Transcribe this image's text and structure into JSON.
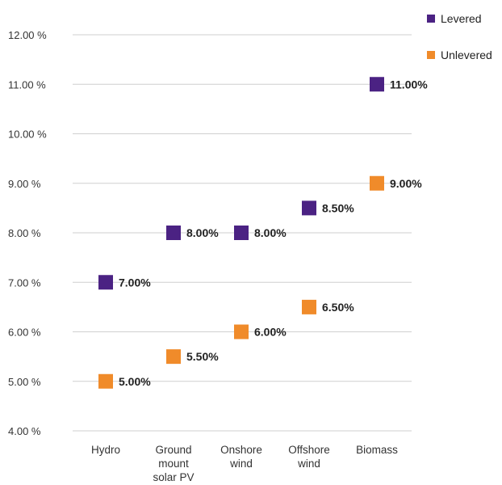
{
  "chart_data": {
    "type": "scatter",
    "categories": [
      [
        "Hydro"
      ],
      [
        "Ground",
        "mount",
        "solar PV"
      ],
      [
        "Onshore",
        "wind"
      ],
      [
        "Offshore",
        "wind"
      ],
      [
        "Biomass"
      ]
    ],
    "series": [
      {
        "name": "Levered",
        "color": "#4b2283",
        "values": [
          7.0,
          8.0,
          8.0,
          8.5,
          11.0
        ],
        "labels": [
          "7.00%",
          "8.00%",
          "8.00%",
          "8.50%",
          "11.00%"
        ]
      },
      {
        "name": "Unlevered",
        "color": "#f08b2a",
        "values": [
          5.0,
          5.5,
          6.0,
          6.5,
          9.0
        ],
        "labels": [
          "5.00%",
          "5.50%",
          "6.00%",
          "6.50%",
          "9.00%"
        ]
      }
    ],
    "y_ticks": [
      4,
      5,
      6,
      7,
      8,
      9,
      10,
      11,
      12
    ],
    "y_tick_labels": [
      "4.00 %",
      "5.00 %",
      "6.00 %",
      "7.00 %",
      "8.00 %",
      "9.00 %",
      "10.00 %",
      "11.00 %",
      "12.00 %"
    ],
    "ylim": [
      4,
      12
    ],
    "grid": true,
    "legend_position": "top-right"
  }
}
